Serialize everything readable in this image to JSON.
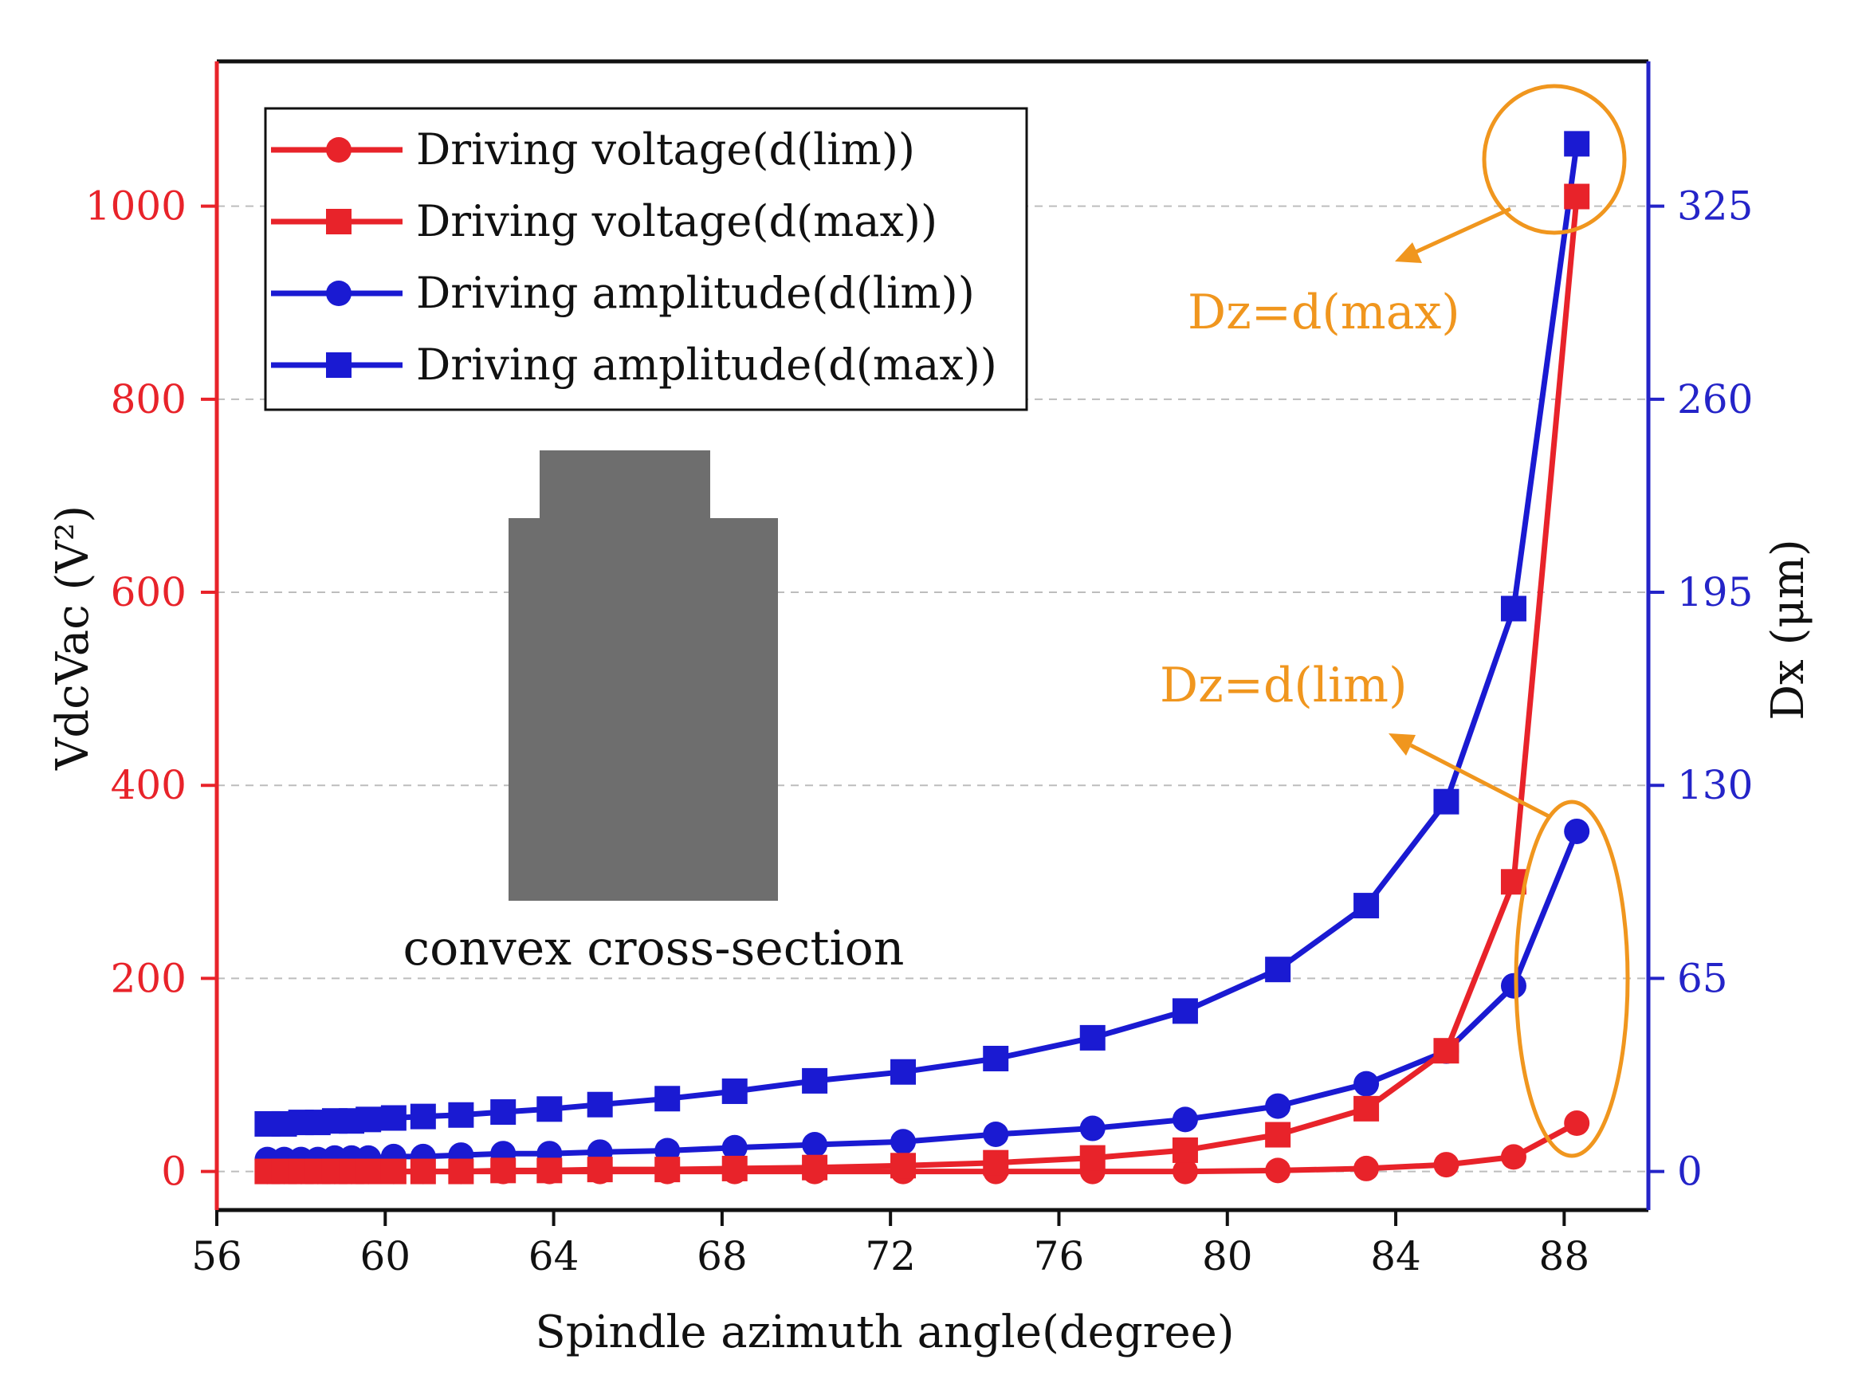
{
  "chart_data": {
    "type": "line",
    "xlabel": "Spindle azimuth angle(degree)",
    "ylabel_left": "VdcVac (V²)",
    "ylabel_right": "Dx (μm)",
    "xlim": [
      56,
      90
    ],
    "ylim_left": [
      -40,
      1150
    ],
    "ylim_right": [
      -13,
      373.75
    ],
    "x_ticks": [
      "56",
      "60",
      "64",
      "68",
      "72",
      "76",
      "80",
      "84",
      "88"
    ],
    "y_left_ticks": [
      "0",
      "200",
      "400",
      "600",
      "800",
      "1000"
    ],
    "y_right_ticks": [
      "0",
      "65",
      "130",
      "195",
      "260",
      "325"
    ],
    "grid": "dashed horizontal",
    "legend_position": "top-left",
    "colors": {
      "voltage": "#e8232a",
      "amplitude": "#1a1ad2",
      "annotation": "#f0961e",
      "inset": "#6e6e6e"
    },
    "series": [
      {
        "name": "Driving voltage(d(lim))",
        "axis": "left",
        "marker": "circle",
        "color": "#e8232a",
        "x": [
          57.2,
          57.6,
          58.0,
          58.4,
          58.8,
          59.2,
          59.6,
          60.2,
          60.9,
          61.8,
          62.8,
          63.9,
          65.1,
          66.7,
          68.3,
          70.2,
          72.3,
          74.5,
          76.8,
          79.0,
          81.2,
          83.3,
          85.2,
          86.8,
          88.3
        ],
        "values": [
          0,
          0,
          0,
          0,
          0,
          0,
          0,
          0,
          0,
          0,
          0,
          0,
          0,
          0,
          0,
          0,
          0,
          0,
          0,
          0,
          1,
          3,
          7,
          15,
          50
        ]
      },
      {
        "name": "Driving voltage(d(max))",
        "axis": "left",
        "marker": "square",
        "color": "#e8232a",
        "x": [
          57.2,
          57.6,
          58.0,
          58.4,
          58.8,
          59.2,
          59.6,
          60.2,
          60.9,
          61.8,
          62.8,
          63.9,
          65.1,
          66.7,
          68.3,
          70.2,
          72.3,
          74.5,
          76.8,
          79.0,
          81.2,
          83.3,
          85.2,
          86.8,
          88.3
        ],
        "values": [
          0,
          0,
          0,
          0,
          0,
          0,
          0,
          0,
          0,
          0,
          1,
          1,
          2,
          2,
          3,
          4,
          6,
          9,
          14,
          22,
          38,
          65,
          125,
          300,
          1010
        ]
      },
      {
        "name": "Driving amplitude(d(lim))",
        "axis": "right",
        "marker": "circle",
        "color": "#1a1ad2",
        "x": [
          57.2,
          57.6,
          58.0,
          58.4,
          58.8,
          59.2,
          59.6,
          60.2,
          60.9,
          61.8,
          62.8,
          63.9,
          65.1,
          66.7,
          68.3,
          70.2,
          72.3,
          74.5,
          76.8,
          79.0,
          81.2,
          83.3,
          85.2,
          86.8,
          88.3
        ],
        "values": [
          4,
          4,
          4,
          4,
          4.5,
          4.5,
          4.5,
          5,
          5,
          5.5,
          6,
          6,
          6.5,
          7,
          8,
          9,
          10,
          12.5,
          14.5,
          17.5,
          22,
          29.5,
          40.5,
          62.5,
          114.5
        ]
      },
      {
        "name": "Driving amplitude(d(max))",
        "axis": "right",
        "marker": "square",
        "color": "#1a1ad2",
        "x": [
          57.2,
          57.6,
          58.0,
          58.4,
          58.8,
          59.2,
          59.6,
          60.2,
          60.9,
          61.8,
          62.8,
          63.9,
          65.1,
          66.7,
          68.3,
          70.2,
          72.3,
          74.5,
          76.8,
          79.0,
          81.2,
          83.3,
          85.2,
          86.8,
          88.3
        ],
        "values": [
          16,
          16,
          16.5,
          16.5,
          17,
          17,
          17.5,
          18,
          18.5,
          19,
          20,
          21,
          22.5,
          24.5,
          27,
          30.5,
          33.5,
          38,
          45,
          54,
          68,
          89.5,
          124.5,
          189.5,
          346
        ]
      }
    ],
    "annotations": [
      "Dz=d(max)",
      "Dz=d(lim)"
    ],
    "inset_caption": "convex cross-section"
  }
}
